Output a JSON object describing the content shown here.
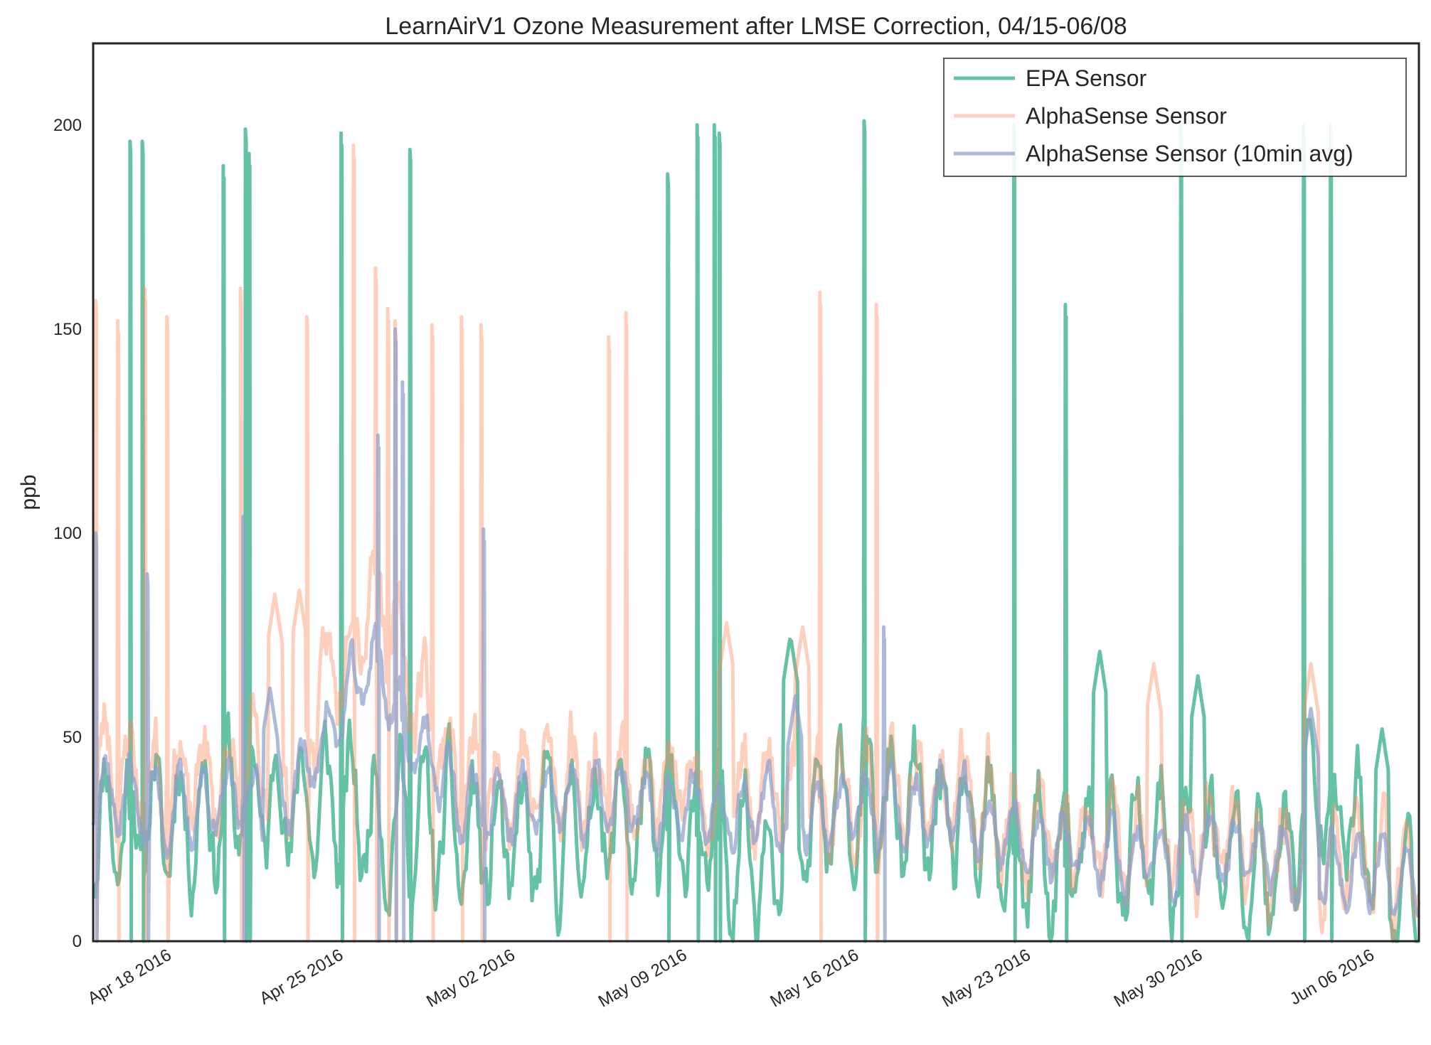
{
  "chart_data": {
    "type": "line",
    "title": "LearnAirV1 Ozone Measurement after LMSE Correction, 04/15-06/08",
    "xlabel": "",
    "ylabel": "ppb",
    "x_range": [
      "2016-04-15",
      "2016-06-08"
    ],
    "ylim": [
      0,
      220
    ],
    "y_ticks": [
      0,
      50,
      100,
      150,
      200
    ],
    "x_ticks": [
      "Apr 18 2016",
      "Apr 25 2016",
      "May 02 2016",
      "May 09 2016",
      "May 16 2016",
      "May 23 2016",
      "May 30 2016",
      "Jun 06 2016"
    ],
    "grid": false,
    "legend_position": "top-right",
    "series": [
      {
        "name": "EPA Sensor",
        "color": "#66c2a5",
        "baseline": [
          [
            0,
            30
          ],
          [
            3,
            30
          ],
          [
            7,
            35
          ],
          [
            12,
            30
          ],
          [
            17,
            22
          ],
          [
            21,
            30
          ],
          [
            28,
            22
          ],
          [
            31,
            35
          ],
          [
            36,
            25
          ],
          [
            39,
            18
          ],
          [
            42,
            20
          ],
          [
            45,
            22
          ],
          [
            48,
            16
          ],
          [
            50,
            40
          ],
          [
            53,
            12
          ],
          [
            56,
            10
          ]
        ],
        "spikes": [
          [
            1.5,
            196
          ],
          [
            2.0,
            196
          ],
          [
            5.3,
            190
          ],
          [
            6.2,
            199
          ],
          [
            6.35,
            193
          ],
          [
            10.1,
            198
          ],
          [
            12.9,
            194
          ],
          [
            23.4,
            188
          ],
          [
            24.6,
            200
          ],
          [
            25.3,
            200
          ],
          [
            25.5,
            198
          ],
          [
            31.4,
            201
          ],
          [
            37.5,
            200
          ],
          [
            39.6,
            156
          ],
          [
            44.3,
            200
          ],
          [
            49.3,
            200
          ],
          [
            50.4,
            200
          ]
        ],
        "peaks": [
          [
            28.4,
            75
          ],
          [
            41.0,
            71
          ],
          [
            45.0,
            65
          ],
          [
            52.5,
            52
          ]
        ]
      },
      {
        "name": "AlphaSense Sensor",
        "color": "#fc8d62",
        "baseline": [
          [
            0,
            45
          ],
          [
            3,
            38
          ],
          [
            8,
            42
          ],
          [
            11.5,
            90
          ],
          [
            12.5,
            70
          ],
          [
            15,
            38
          ],
          [
            20,
            40
          ],
          [
            25,
            36
          ],
          [
            30,
            34
          ],
          [
            35,
            36
          ],
          [
            38,
            28
          ],
          [
            42,
            22
          ],
          [
            45,
            24
          ],
          [
            50,
            20
          ],
          [
            56,
            18
          ]
        ],
        "spikes": [
          [
            0.1,
            157
          ],
          [
            1.0,
            152
          ],
          [
            2.1,
            160
          ],
          [
            3.0,
            153
          ],
          [
            6.0,
            160
          ],
          [
            8.7,
            153
          ],
          [
            10.6,
            195
          ],
          [
            11.5,
            165
          ],
          [
            12.0,
            155
          ],
          [
            12.3,
            152
          ],
          [
            13.8,
            151
          ],
          [
            15.0,
            153
          ],
          [
            15.8,
            151
          ],
          [
            21.0,
            148
          ],
          [
            21.7,
            154
          ],
          [
            29.6,
            159
          ],
          [
            31.9,
            156
          ]
        ],
        "peaks": [
          [
            7.4,
            85
          ],
          [
            8.4,
            86
          ],
          [
            25.8,
            78
          ],
          [
            28.9,
            77
          ],
          [
            43.2,
            68
          ],
          [
            49.6,
            68
          ]
        ]
      },
      {
        "name": "AlphaSense Sensor (10min avg)",
        "color": "#8da0cb",
        "baseline": [
          [
            0,
            38
          ],
          [
            3,
            32
          ],
          [
            8,
            36
          ],
          [
            11.5,
            70
          ],
          [
            12.5,
            55
          ],
          [
            15,
            33
          ],
          [
            20,
            34
          ],
          [
            25,
            33
          ],
          [
            30,
            31
          ],
          [
            35,
            32
          ],
          [
            38,
            25
          ],
          [
            42,
            20
          ],
          [
            45,
            22
          ],
          [
            50,
            18
          ],
          [
            56,
            16
          ]
        ],
        "spikes": [
          [
            0.1,
            100
          ],
          [
            2.2,
            90
          ],
          [
            6.1,
            104
          ],
          [
            11.6,
            124
          ],
          [
            12.3,
            150
          ],
          [
            12.6,
            137
          ],
          [
            15.9,
            101
          ],
          [
            32.2,
            77
          ]
        ],
        "peaks": [
          [
            7.2,
            62
          ],
          [
            28.6,
            60
          ],
          [
            49.6,
            57
          ]
        ]
      }
    ]
  }
}
